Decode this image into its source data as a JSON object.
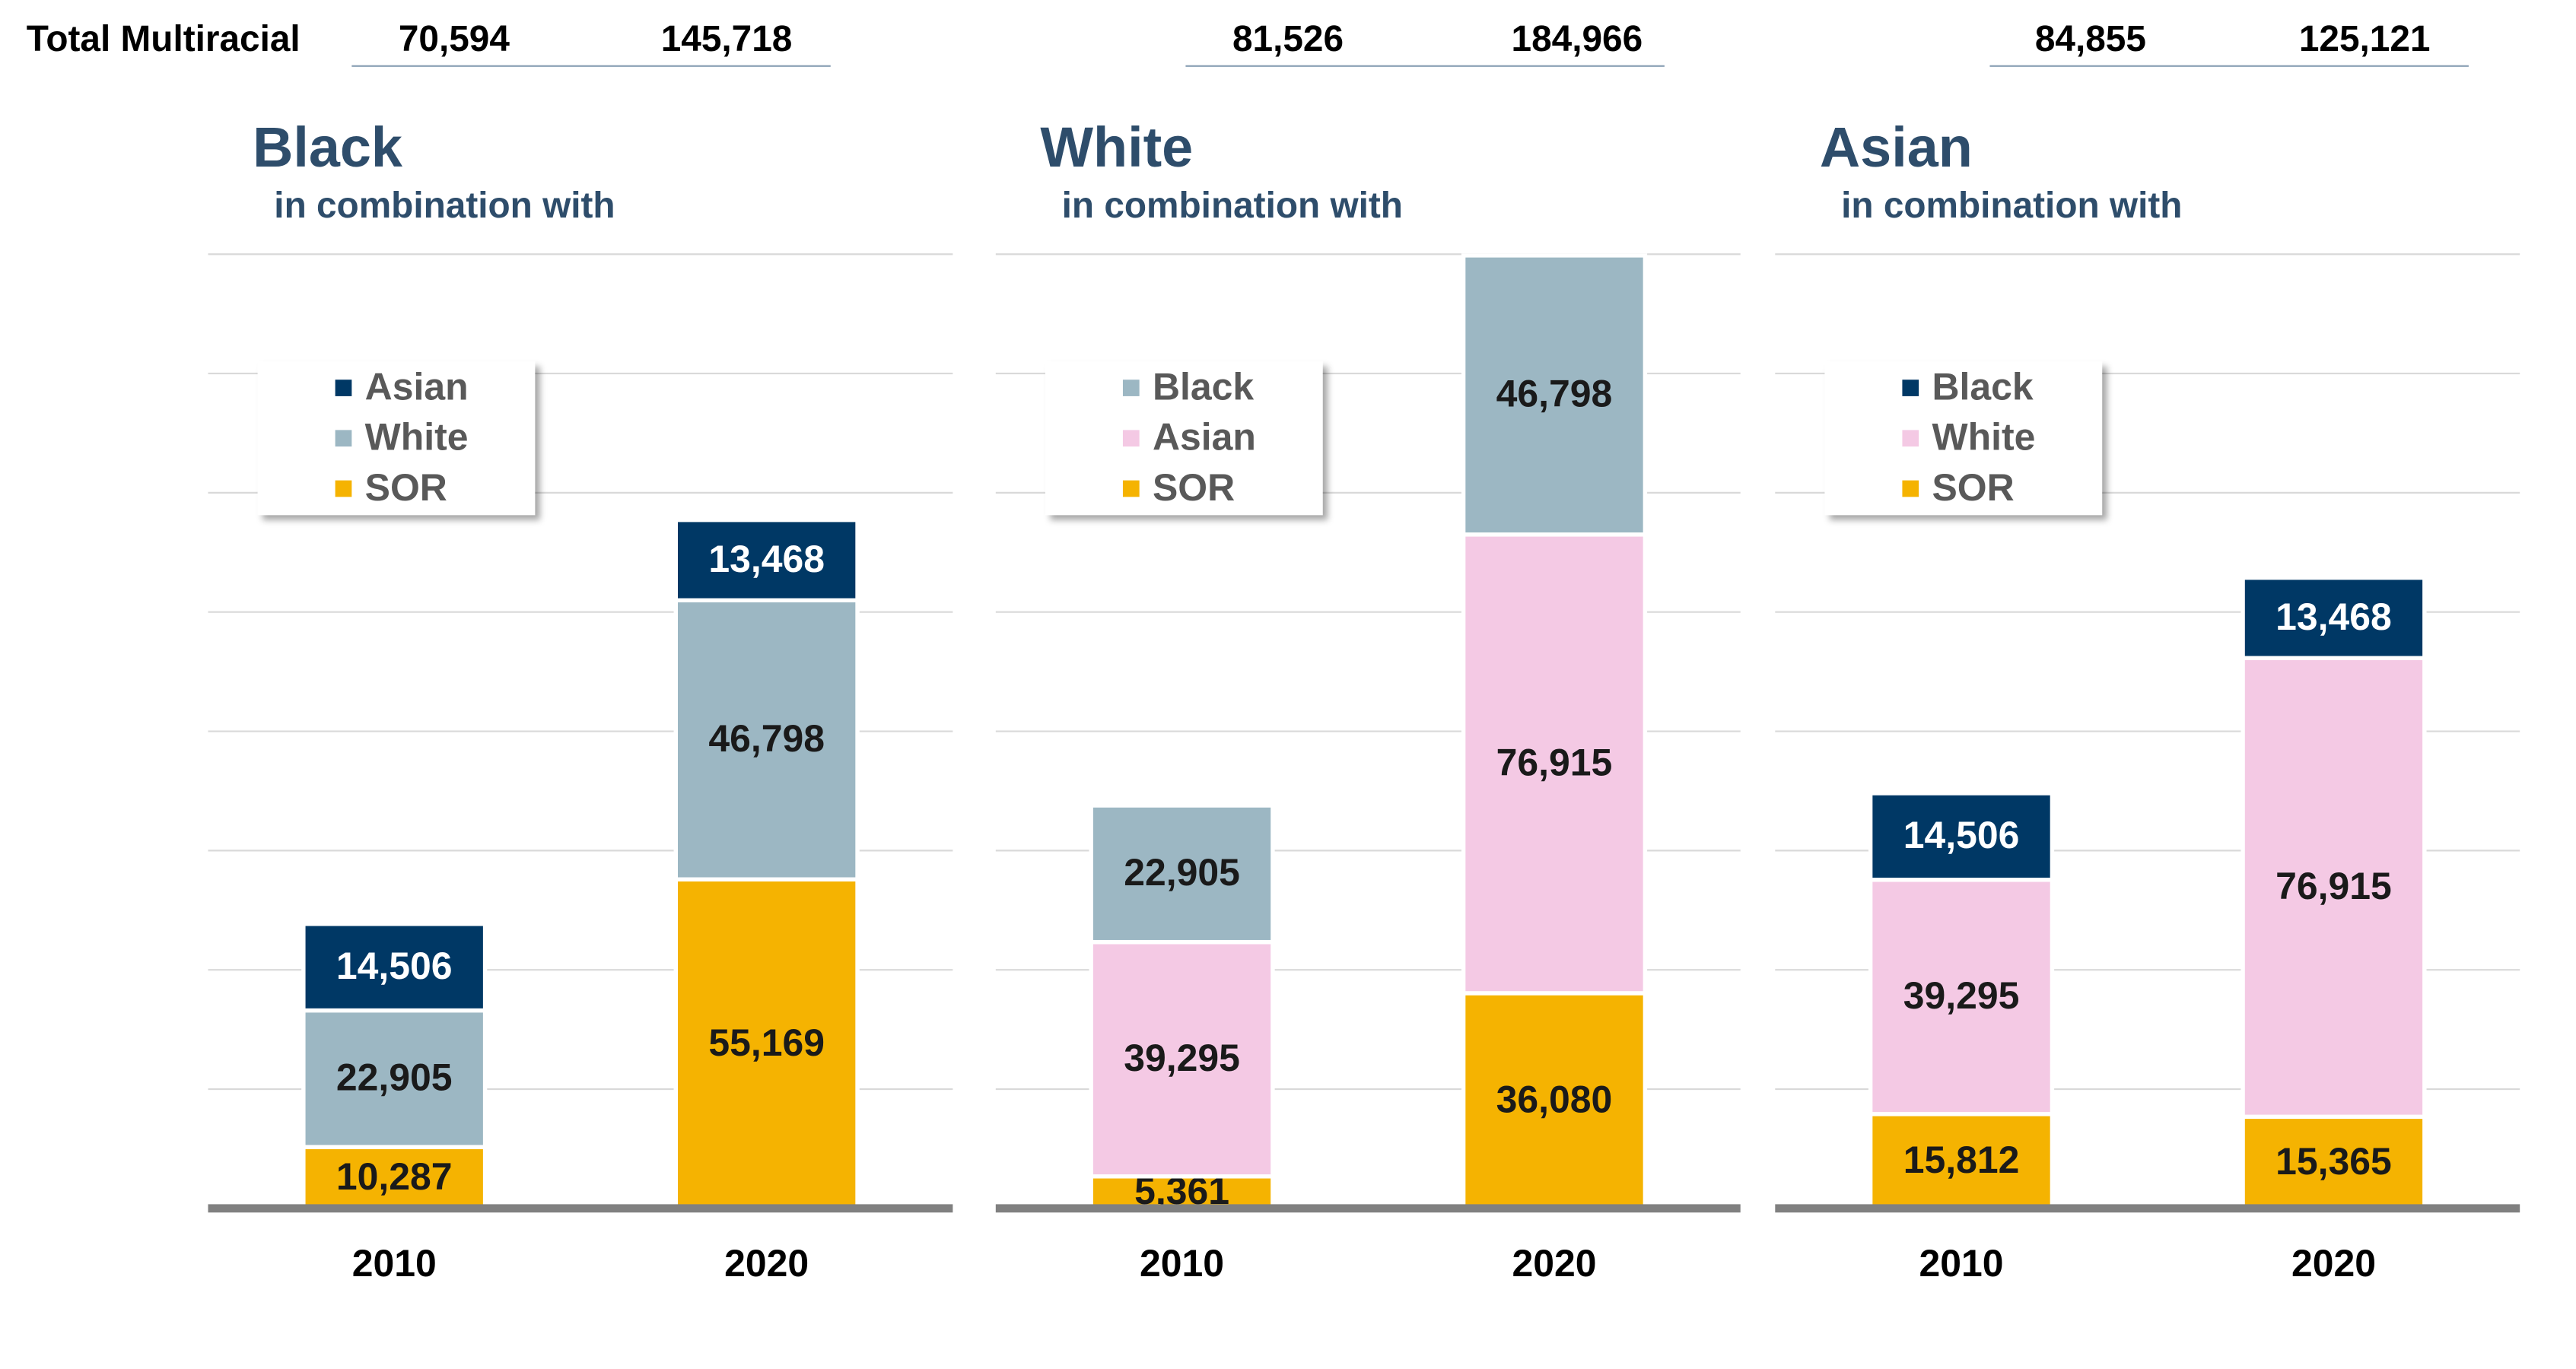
{
  "row_label": "Total Multiracial",
  "chart_data": [
    {
      "type": "bar",
      "stacked": true,
      "title": "Black",
      "subtitle": "in combination with",
      "totals": {
        "values": [
          70594,
          145718
        ],
        "value_labels": [
          "70,594",
          "145,718"
        ]
      },
      "categories": [
        "2010",
        "2020"
      ],
      "series": [
        {
          "name": "SOR",
          "color": "#f5b301",
          "values": [
            10287,
            55169
          ],
          "value_labels": [
            "10,287",
            "55,169"
          ]
        },
        {
          "name": "White",
          "color": "#9cb7c3",
          "values": [
            22905,
            46798
          ],
          "value_labels": [
            "22,905",
            "46,798"
          ]
        },
        {
          "name": "Asian",
          "color": "#003865",
          "values": [
            14506,
            13468
          ],
          "value_labels": [
            "14,506",
            "13,468"
          ]
        }
      ],
      "ylim": [
        0,
        160000
      ],
      "yticks": [
        0,
        20000,
        40000,
        60000,
        80000,
        100000,
        120000,
        140000,
        160000
      ],
      "grid": true
    },
    {
      "type": "bar",
      "stacked": true,
      "title": "White",
      "subtitle": "in combination with",
      "totals": {
        "values": [
          81526,
          184966
        ],
        "value_labels": [
          "81,526",
          "184,966"
        ]
      },
      "categories": [
        "2010",
        "2020"
      ],
      "series": [
        {
          "name": "SOR",
          "color": "#f5b301",
          "values": [
            5361,
            36080
          ],
          "value_labels": [
            "5,361",
            "36,080"
          ]
        },
        {
          "name": "Asian",
          "color": "#f4c9e4",
          "values": [
            39295,
            76915
          ],
          "value_labels": [
            "39,295",
            "76,915"
          ]
        },
        {
          "name": "Black",
          "color": "#9cb7c3",
          "values": [
            22905,
            46798
          ],
          "value_labels": [
            "22,905",
            "46,798"
          ]
        }
      ],
      "ylim": [
        0,
        160000
      ],
      "yticks": [
        0,
        20000,
        40000,
        60000,
        80000,
        100000,
        120000,
        140000,
        160000
      ],
      "grid": true
    },
    {
      "type": "bar",
      "stacked": true,
      "title": "Asian",
      "subtitle": "in combination with",
      "totals": {
        "values": [
          84855,
          125121
        ],
        "value_labels": [
          "84,855",
          "125,121"
        ]
      },
      "categories": [
        "2010",
        "2020"
      ],
      "series": [
        {
          "name": "SOR",
          "color": "#f5b301",
          "values": [
            15812,
            15365
          ],
          "value_labels": [
            "15,812",
            "15,365"
          ]
        },
        {
          "name": "White",
          "color": "#f4c9e4",
          "values": [
            39295,
            76915
          ],
          "value_labels": [
            "39,295",
            "76,915"
          ]
        },
        {
          "name": "Black",
          "color": "#003865",
          "values": [
            14506,
            13468
          ],
          "value_labels": [
            "14,506",
            "13,468"
          ]
        }
      ],
      "ylim": [
        0,
        160000
      ],
      "yticks": [
        0,
        20000,
        40000,
        60000,
        80000,
        100000,
        120000,
        140000,
        160000
      ],
      "grid": true
    }
  ]
}
